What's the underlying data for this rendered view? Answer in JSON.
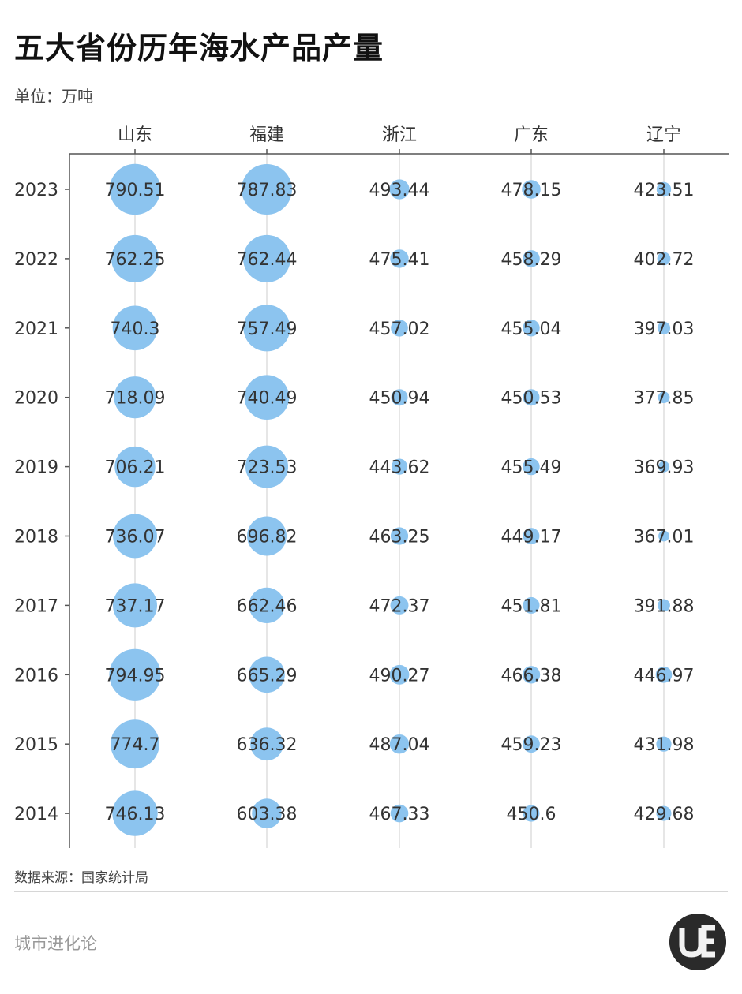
{
  "title": "五大省份历年海水产品产量",
  "subtitle": "单位：万吨",
  "source": "数据来源：国家统计局",
  "brand": "城市进化论",
  "logo_text": "UE",
  "colors": {
    "bubble": "#8cc4ef",
    "axis": "#555555",
    "gridline": "#dddddd"
  },
  "chart_data": {
    "type": "bubble",
    "columns": [
      "山东",
      "福建",
      "浙江",
      "广东",
      "辽宁"
    ],
    "rows": [
      "2023",
      "2022",
      "2021",
      "2020",
      "2019",
      "2018",
      "2017",
      "2016",
      "2015",
      "2014"
    ],
    "series": [
      {
        "name": "山东",
        "values": [
          790.51,
          762.25,
          740.3,
          718.09,
          706.21,
          736.07,
          737.17,
          794.95,
          774.7,
          746.13
        ]
      },
      {
        "name": "福建",
        "values": [
          787.83,
          762.44,
          757.49,
          740.49,
          723.53,
          696.82,
          662.46,
          665.29,
          636.32,
          603.38
        ]
      },
      {
        "name": "浙江",
        "values": [
          493.44,
          475.41,
          457.02,
          450.94,
          443.62,
          463.25,
          472.37,
          490.27,
          487.04,
          467.33
        ]
      },
      {
        "name": "广东",
        "values": [
          478.15,
          458.29,
          455.04,
          450.53,
          455.49,
          449.17,
          451.81,
          466.38,
          459.23,
          450.6
        ]
      },
      {
        "name": "辽宁",
        "values": [
          423.51,
          402.72,
          397.03,
          377.85,
          369.93,
          367.01,
          391.88,
          446.97,
          431.98,
          429.68
        ]
      }
    ],
    "labels": [
      [
        "790.51",
        "762.25",
        "740.3",
        "718.09",
        "706.21",
        "736.07",
        "737.17",
        "794.95",
        "774.7",
        "746.13"
      ],
      [
        "787.83",
        "762.44",
        "757.49",
        "740.49",
        "723.53",
        "696.82",
        "662.46",
        "665.29",
        "636.32",
        "603.38"
      ],
      [
        "493.44",
        "475.41",
        "457.02",
        "450.94",
        "443.62",
        "463.25",
        "472.37",
        "490.27",
        "487.04",
        "467.33"
      ],
      [
        "478.15",
        "458.29",
        "455.04",
        "450.53",
        "455.49",
        "449.17",
        "451.81",
        "466.38",
        "459.23",
        "450.6"
      ],
      [
        "423.51",
        "402.72",
        "397.03",
        "377.85",
        "369.93",
        "367.01",
        "391.88",
        "446.97",
        "431.98",
        "429.68"
      ]
    ],
    "grid": true
  }
}
